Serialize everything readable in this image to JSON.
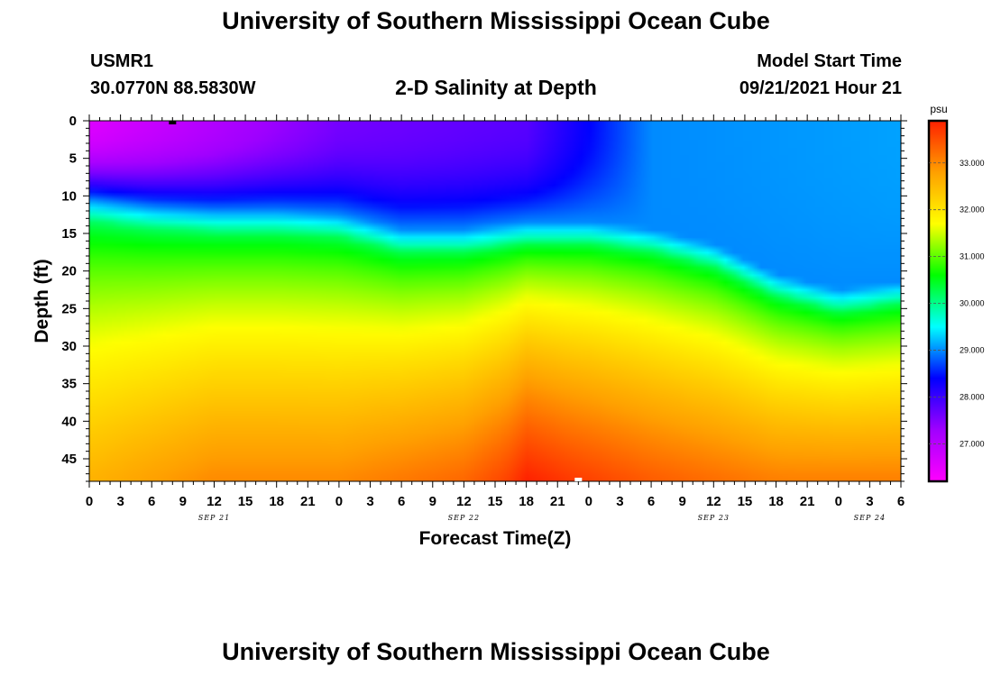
{
  "header": {
    "title_top": "University of Southern Mississippi Ocean Cube",
    "title_bottom": "University of Southern Mississippi Ocean Cube",
    "station": "USMR1",
    "coords": "30.0770N  88.5830W",
    "start_label": "Model Start Time",
    "start_value": "09/21/2021 Hour 21"
  },
  "chart_data": {
    "type": "heatmap",
    "title": "2-D Salinity at Depth",
    "xlabel": "Forecast Time(Z)",
    "ylabel": "Depth (ft)",
    "x_tick_labels": [
      "0",
      "3",
      "6",
      "9",
      "12",
      "15",
      "18",
      "21",
      "0",
      "3",
      "6",
      "9",
      "12",
      "15",
      "18",
      "21",
      "0",
      "3",
      "6",
      "9",
      "12",
      "15",
      "18",
      "21",
      "0",
      "3",
      "6"
    ],
    "x_range_hours": [
      0,
      78
    ],
    "date_labels": [
      {
        "text": "SEP 21",
        "hour": 12
      },
      {
        "text": "SEP 22",
        "hour": 36
      },
      {
        "text": "SEP 23",
        "hour": 60
      },
      {
        "text": "SEP 24",
        "hour": 75
      }
    ],
    "y_ticks": [
      0,
      5,
      10,
      15,
      20,
      25,
      30,
      35,
      40,
      45
    ],
    "y_range": [
      0,
      48
    ],
    "colorbar": {
      "unit": "psu",
      "range": [
        26.2,
        33.9
      ],
      "tick_values": [
        27,
        28,
        29,
        30,
        31,
        32,
        33
      ],
      "tick_labels": [
        "27.000",
        "28.000",
        "29.000",
        "30.000",
        "31.000",
        "32.000",
        "33.000"
      ],
      "colors": [
        "#ff00ff",
        "#a000ff",
        "#0000ff",
        "#00ffff",
        "#00ff00",
        "#ffff00",
        "#ffa000",
        "#ff2000"
      ]
    },
    "surface_salinity": [
      {
        "hour": 0,
        "value": 26.6
      },
      {
        "hour": 24,
        "value": 27.6
      },
      {
        "hour": 42,
        "value": 27.8
      },
      {
        "hour": 54,
        "value": 29.0
      },
      {
        "hour": 78,
        "value": 29.1
      }
    ],
    "halocline_depth_ft": [
      {
        "hour": 0,
        "value": 13
      },
      {
        "hour": 6,
        "value": 14
      },
      {
        "hour": 12,
        "value": 14.5
      },
      {
        "hour": 18,
        "value": 14.5
      },
      {
        "hour": 24,
        "value": 15
      },
      {
        "hour": 30,
        "value": 17
      },
      {
        "hour": 36,
        "value": 17
      },
      {
        "hour": 42,
        "value": 16
      },
      {
        "hour": 48,
        "value": 16
      },
      {
        "hour": 54,
        "value": 17
      },
      {
        "hour": 60,
        "value": 19
      },
      {
        "hour": 66,
        "value": 23
      },
      {
        "hour": 72,
        "value": 25
      },
      {
        "hour": 78,
        "value": 24
      }
    ],
    "bottom_salinity": [
      {
        "hour": 0,
        "value": 32.6
      },
      {
        "hour": 12,
        "value": 33.0
      },
      {
        "hour": 24,
        "value": 33.0
      },
      {
        "hour": 36,
        "value": 33.3
      },
      {
        "hour": 40,
        "value": 33.6
      },
      {
        "hour": 42,
        "value": 33.9
      },
      {
        "hour": 46,
        "value": 33.7
      },
      {
        "hour": 54,
        "value": 33.4
      },
      {
        "hour": 66,
        "value": 33.1
      },
      {
        "hour": 78,
        "value": 33.1
      }
    ],
    "time_markers": [
      {
        "hour": 8,
        "depth": 0,
        "color": "#000000"
      },
      {
        "hour": 47,
        "depth": 48,
        "color": "#ffffff"
      }
    ]
  }
}
